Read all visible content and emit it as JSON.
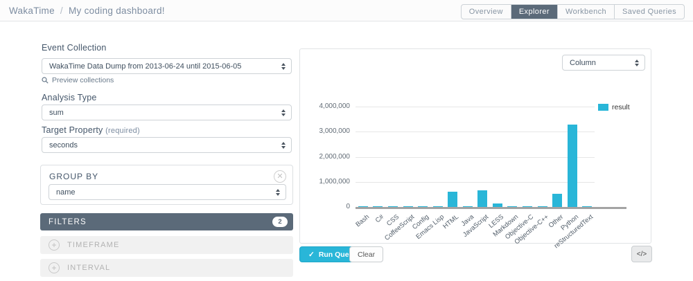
{
  "header": {
    "brand": "WakaTime",
    "separator": "/",
    "title": "My coding dashboard!",
    "tabs": [
      {
        "label": "Overview",
        "active": false
      },
      {
        "label": "Explorer",
        "active": true
      },
      {
        "label": "Workbench",
        "active": false
      },
      {
        "label": "Saved Queries",
        "active": false
      }
    ]
  },
  "query_panel": {
    "event_collection": {
      "label": "Event Collection",
      "value": "WakaTime Data Dump from 2013-06-24 until 2015-06-05",
      "preview_link": "Preview collections"
    },
    "analysis_type": {
      "label": "Analysis Type",
      "value": "sum"
    },
    "target_property": {
      "label": "Target Property",
      "required_hint": "(required)",
      "value": "seconds"
    },
    "group_by": {
      "label": "GROUP BY",
      "value": "name",
      "close_glyph": "✕"
    },
    "filters": {
      "label": "FILTERS",
      "badge_count": "2"
    },
    "timeframe": {
      "label": "TIMEFRAME",
      "plus_glyph": "+"
    },
    "interval": {
      "label": "INTERVAL",
      "plus_glyph": "+"
    }
  },
  "chart_panel": {
    "chart_type_select": "Column",
    "run_query_label": "Run Query",
    "run_query_check": "✓",
    "clear_label": "Clear",
    "embed_button": "</>"
  },
  "chart_data": {
    "type": "bar",
    "title": "",
    "categories": [
      "Bash",
      "C#",
      "CSS",
      "CoffeeScript",
      "Config",
      "Emacs Lisp",
      "HTML",
      "Java",
      "JavaScript",
      "LESS",
      "Markdown",
      "Objective-C",
      "Objective-C++",
      "Other",
      "Python",
      "reStructuredText"
    ],
    "series": [
      {
        "name": "result",
        "values": [
          15000,
          30000,
          12000,
          30000,
          12000,
          30000,
          620000,
          40000,
          670000,
          130000,
          35000,
          10000,
          36000,
          520000,
          3280000,
          8000
        ]
      }
    ],
    "xlabel": "",
    "ylabel": "",
    "ylim": [
      0,
      4000000
    ],
    "yticks": [
      0,
      1000000,
      2000000,
      3000000,
      4000000
    ],
    "ytick_labels": [
      "0",
      "1,000,000",
      "2,000,000",
      "3,000,000",
      "4,000,000"
    ],
    "grid": true,
    "legend_position": "right-top",
    "bar_color": "#29b6d8"
  },
  "colors": {
    "accent_cyan": "#29b6d8",
    "dark_slate": "#5b6a79",
    "header_text": "#7d8da1"
  }
}
